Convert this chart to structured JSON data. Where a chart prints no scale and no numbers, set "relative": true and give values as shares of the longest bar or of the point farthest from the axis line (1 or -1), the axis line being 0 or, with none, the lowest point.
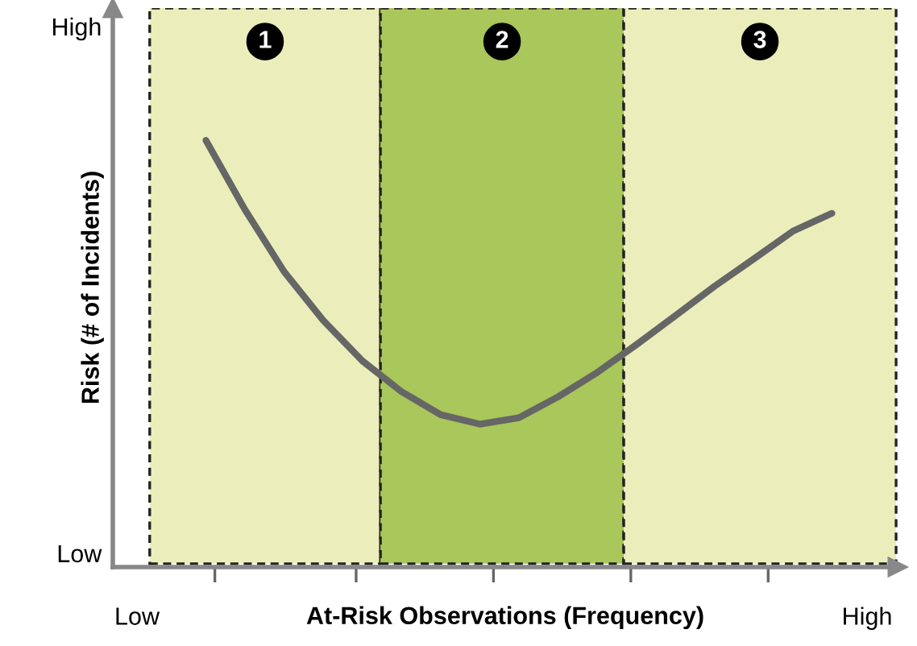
{
  "chart_data": {
    "type": "line",
    "relative": true,
    "xlabel": "At-Risk Observations (Frequency)",
    "ylabel": "Risk (# of Incidents)",
    "categories": [
      null,
      null,
      null,
      null,
      null,
      null,
      null,
      null,
      null,
      null,
      null,
      null,
      null,
      null,
      null,
      null,
      null
    ],
    "annotations": [
      "High",
      "Low",
      "Low",
      "High",
      "1",
      "2",
      "3"
    ],
    "series": [
      {
        "color": "#666666",
        "values": [
          1,
          0.837,
          0.692,
          0.578,
          0.483,
          0.411,
          0.357,
          0.335,
          0.35,
          0.399,
          0.456,
          0.521,
          0.589,
          0.658,
          0.722,
          0.787,
          0.829
        ]
      }
    ],
    "grid": false,
    "legend": false,
    "marker": "none",
    "line_style": "solid"
  }
}
